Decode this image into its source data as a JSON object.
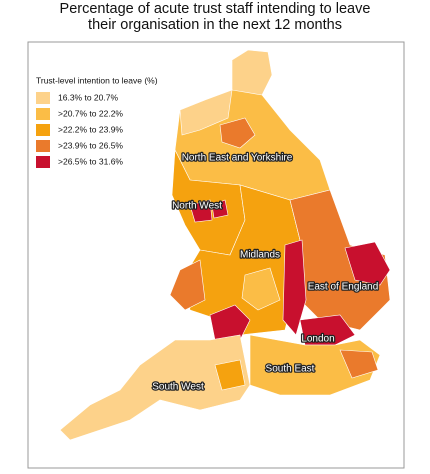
{
  "title": [
    "Percentage of acute trust staff intending to leave",
    "their organisation in the next 12 months"
  ],
  "legend": {
    "title": "Trust-level intention to leave (%)",
    "items": [
      {
        "label": "16.3% to 20.7%",
        "color": "#fdd28a"
      },
      {
        "label": ">20.7% to 22.2%",
        "color": "#fbbd46"
      },
      {
        "label": ">22.2% to 23.9%",
        "color": "#f5a20f"
      },
      {
        "label": ">23.9% to 26.5%",
        "color": "#ea7a2c"
      },
      {
        "label": ">26.5% to 31.6%",
        "color": "#c8102e"
      }
    ]
  },
  "regions": [
    {
      "label": "North East and Yorkshire"
    },
    {
      "label": "North West"
    },
    {
      "label": "Midlands"
    },
    {
      "label": "East of England"
    },
    {
      "label": "London"
    },
    {
      "label": "South East"
    },
    {
      "label": "South West"
    }
  ]
}
